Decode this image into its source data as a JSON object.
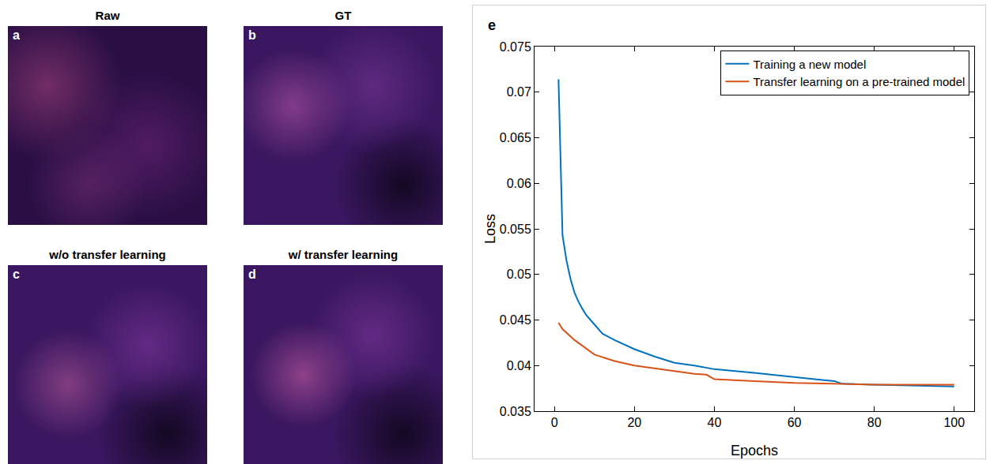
{
  "panels": [
    {
      "letter": "a",
      "title": "Raw"
    },
    {
      "letter": "b",
      "title": "GT"
    },
    {
      "letter": "c",
      "title": "w/o transfer learning"
    },
    {
      "letter": "d",
      "title": "w/ transfer learning"
    }
  ],
  "chart_data": {
    "type": "line",
    "annotations": [
      {
        "text": "e"
      }
    ],
    "x_label": "Epochs",
    "y_label": "Loss",
    "xlim": [
      -5,
      105
    ],
    "xticks": [
      0,
      20,
      40,
      60,
      80,
      100
    ],
    "ylim": [
      0.035,
      0.075
    ],
    "yticks": [
      0.035,
      0.04,
      0.045,
      0.05,
      0.055,
      0.06,
      0.065,
      0.07,
      0.075
    ],
    "grid": false,
    "legend": "top-right",
    "series": [
      {
        "name": "Training a new model",
        "color": "#0072bd",
        "x": [
          1,
          2,
          3,
          4,
          5,
          6,
          7,
          8,
          10,
          12,
          15,
          20,
          25,
          30,
          35,
          40,
          50,
          60,
          65,
          70,
          72,
          80,
          90,
          100
        ],
        "values": [
          0.0714,
          0.0543,
          0.0515,
          0.0495,
          0.048,
          0.047,
          0.0462,
          0.0455,
          0.0445,
          0.0435,
          0.0428,
          0.0418,
          0.041,
          0.0403,
          0.04,
          0.0396,
          0.0392,
          0.0387,
          0.0385,
          0.0383,
          0.038,
          0.0379,
          0.0378,
          0.0377
        ]
      },
      {
        "name": "Transfer learning on a pre-trained model",
        "color": "#d95319",
        "x": [
          1,
          2,
          5,
          10,
          15,
          20,
          30,
          35,
          38,
          40,
          50,
          60,
          70,
          80,
          90,
          100
        ],
        "values": [
          0.0447,
          0.044,
          0.0428,
          0.0412,
          0.0405,
          0.04,
          0.0394,
          0.0391,
          0.039,
          0.0385,
          0.0383,
          0.0381,
          0.038,
          0.0379,
          0.0379,
          0.0379
        ]
      }
    ]
  }
}
